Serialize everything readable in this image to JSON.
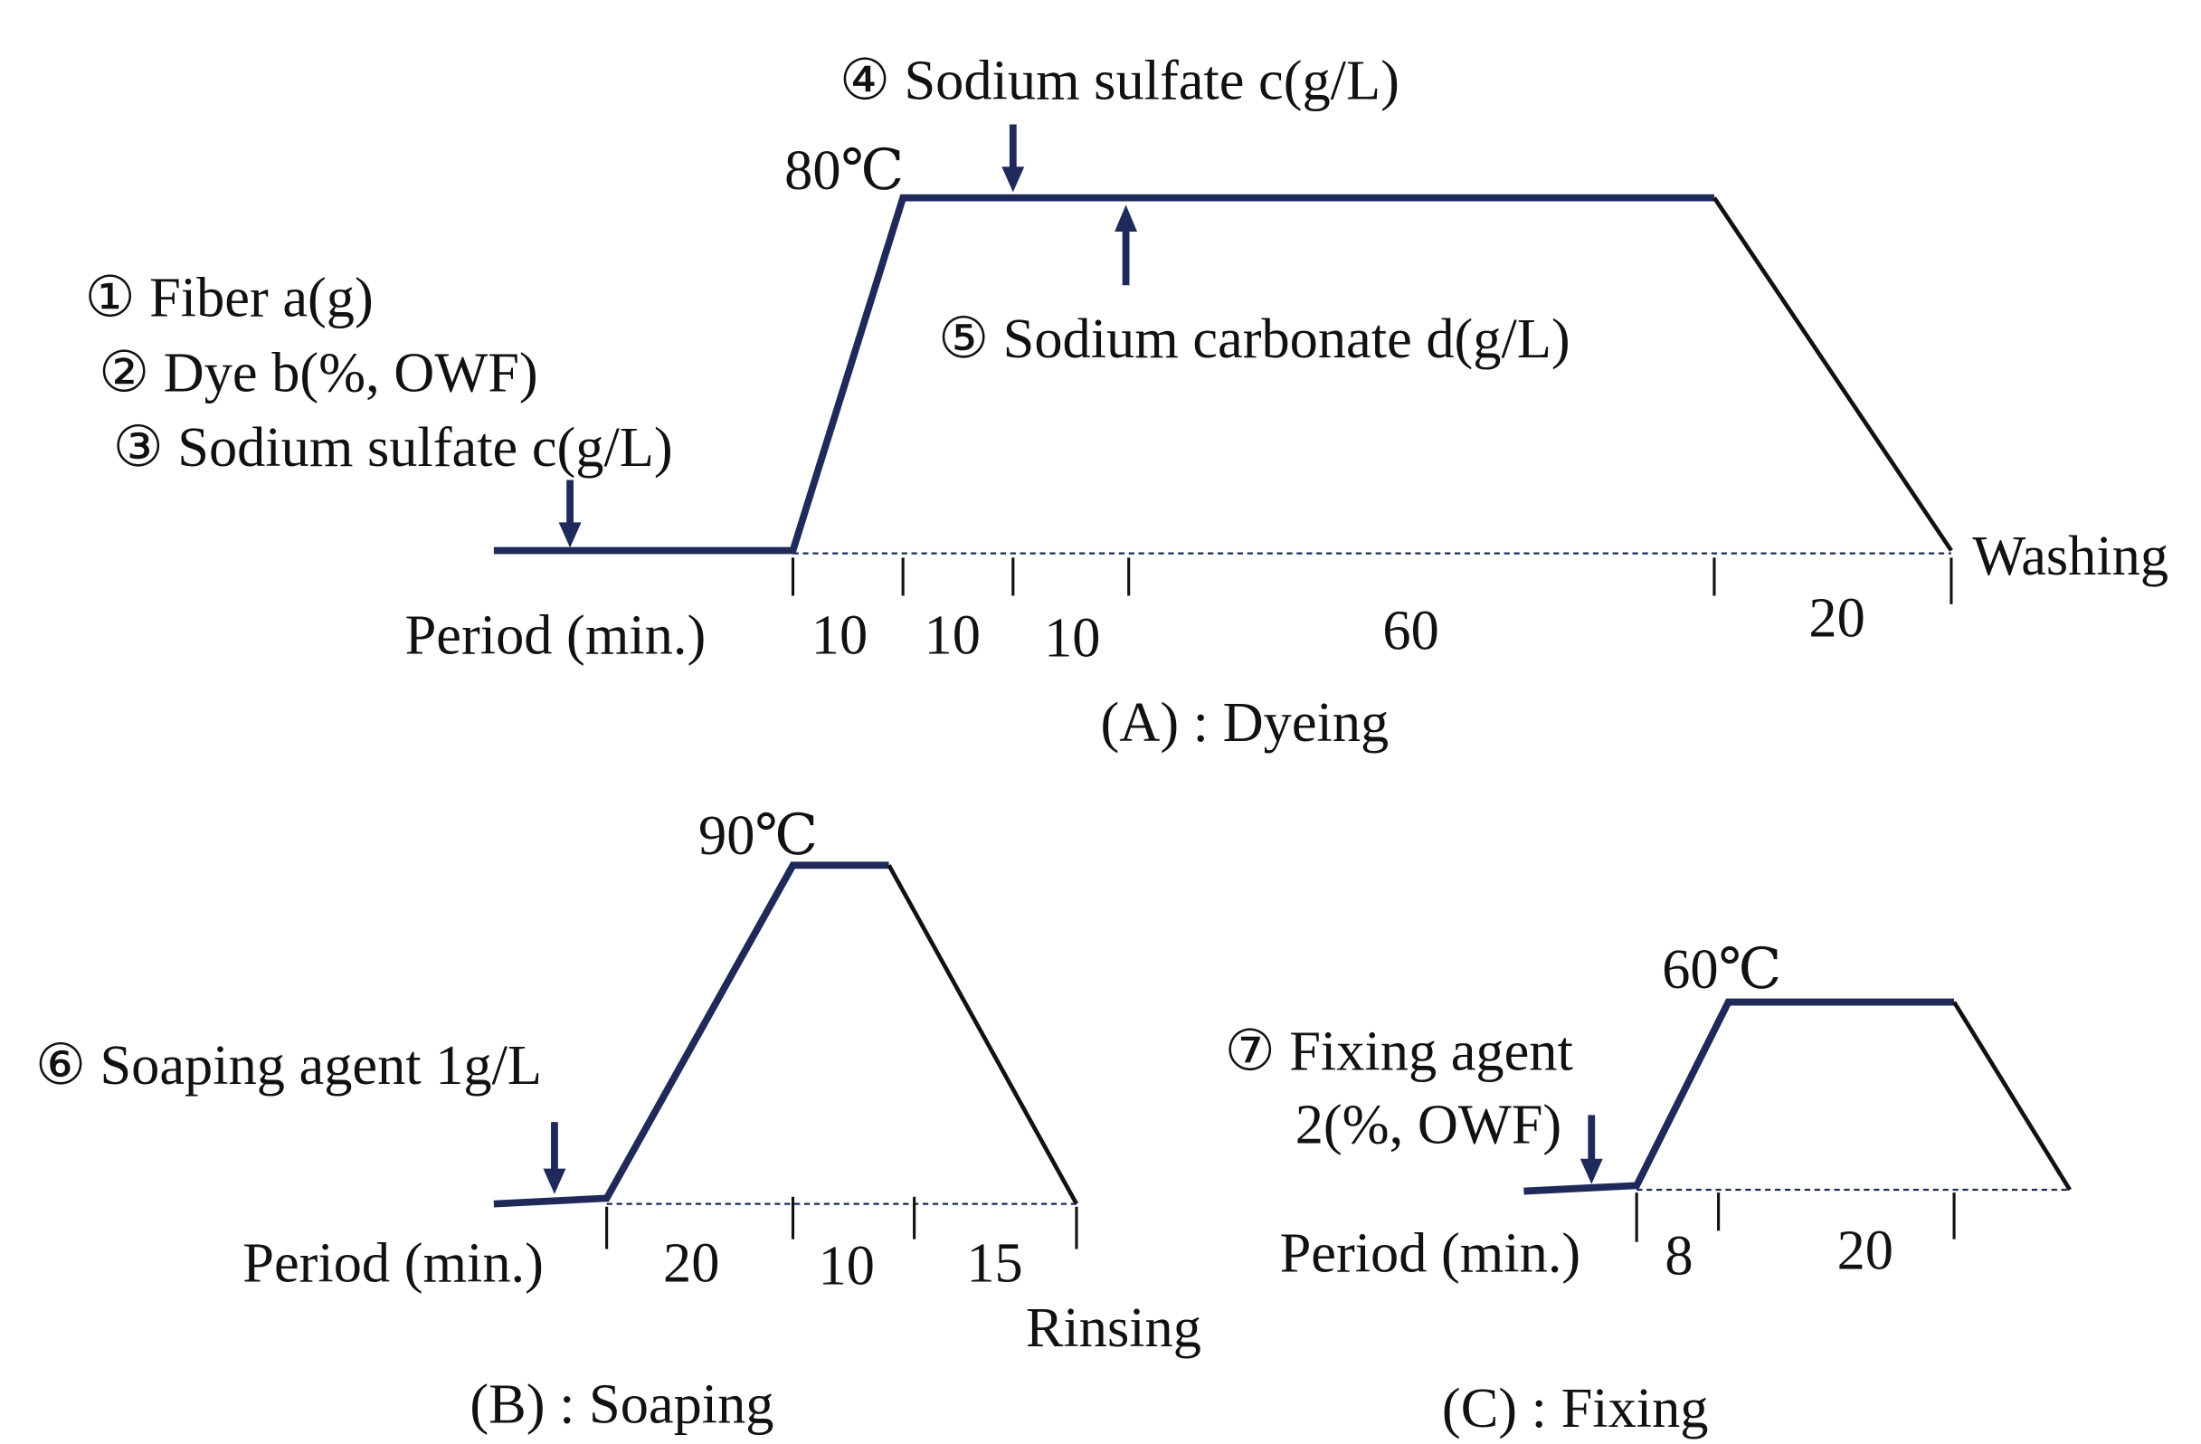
{
  "diagrams": [
    {
      "caption": "(A) : Dyeing",
      "temperature": "80℃",
      "additions": [
        "① Fiber a(g)",
        "② Dye b(%, OWF)",
        "③ Sodium sulfate c(g/L)",
        "④ Sodium sulfate c(g/L)",
        "⑤ Sodium carbonate d(g/L)"
      ],
      "period_label": "Period (min.)",
      "periods": [
        "10",
        "10",
        "10",
        "60",
        "20"
      ],
      "end_label": "Washing"
    },
    {
      "caption": "(B) : Soaping",
      "temperature": "90℃",
      "additions": [
        "⑥ Soaping agent 1g/L"
      ],
      "period_label": "Period (min.)",
      "periods": [
        "20",
        "10",
        "15"
      ],
      "end_label": "Rinsing"
    },
    {
      "caption": "(C) : Fixing",
      "temperature": "60℃",
      "additions": [
        "⑦ Fixing agent",
        "2(%, OWF)"
      ],
      "period_label": "Period (min.)",
      "periods": [
        "8",
        "20"
      ]
    }
  ]
}
